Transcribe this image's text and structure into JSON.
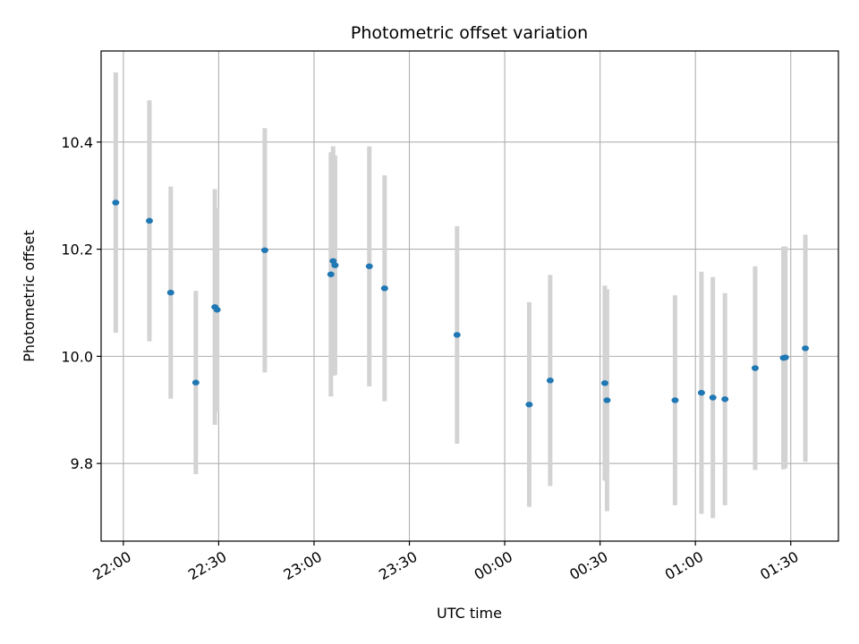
{
  "chart_data": {
    "type": "scatter",
    "title": "Photometric offset variation",
    "xlabel": "UTC time",
    "ylabel": "Photometric offset",
    "xlim": [
      "21:53",
      "01:45"
    ],
    "ylim": [
      9.655,
      10.57
    ],
    "grid": true,
    "error_bar_color": "#d3d3d3",
    "point_color": "#1f77b4",
    "x_ticks": [
      "22:00",
      "22:30",
      "23:00",
      "23:30",
      "00:00",
      "00:30",
      "01:00",
      "01:30"
    ],
    "y_ticks": [
      9.8,
      10.0,
      10.2,
      10.4
    ],
    "y_tick_labels": [
      "9.8",
      "10.0",
      "10.2",
      "10.4"
    ],
    "points": [
      {
        "x": "21:57.6",
        "y": 10.287,
        "err": 0.243
      },
      {
        "x": "22:08.2",
        "y": 10.253,
        "err": 0.225
      },
      {
        "x": "22:14.9",
        "y": 10.119,
        "err": 0.198
      },
      {
        "x": "22:22.8",
        "y": 9.951,
        "err": 0.171
      },
      {
        "x": "22:28.8",
        "y": 10.092,
        "err": 0.22
      },
      {
        "x": "22:29.5",
        "y": 10.087,
        "err": 0.19
      },
      {
        "x": "22:44.5",
        "y": 10.198,
        "err": 0.228
      },
      {
        "x": "23:05.3",
        "y": 10.153,
        "err": 0.228
      },
      {
        "x": "23:06.0",
        "y": 10.178,
        "err": 0.214
      },
      {
        "x": "23:06.6",
        "y": 10.17,
        "err": 0.205
      },
      {
        "x": "23:17.4",
        "y": 10.168,
        "err": 0.224
      },
      {
        "x": "23:22.2",
        "y": 10.127,
        "err": 0.211
      },
      {
        "x": "23:45.0",
        "y": 10.04,
        "err": 0.203
      },
      {
        "x": "00:07.7",
        "y": 9.91,
        "err": 0.191
      },
      {
        "x": "00:14.3",
        "y": 9.955,
        "err": 0.197
      },
      {
        "x": "00:31.5",
        "y": 9.95,
        "err": 0.182
      },
      {
        "x": "00:32.2",
        "y": 9.918,
        "err": 0.207
      },
      {
        "x": "00:53.6",
        "y": 9.918,
        "err": 0.196
      },
      {
        "x": "01:01.9",
        "y": 9.932,
        "err": 0.226
      },
      {
        "x": "01:05.5",
        "y": 9.923,
        "err": 0.225
      },
      {
        "x": "01:09.3",
        "y": 9.92,
        "err": 0.198
      },
      {
        "x": "01:18.8",
        "y": 9.978,
        "err": 0.19
      },
      {
        "x": "01:27.7",
        "y": 9.997,
        "err": 0.208
      },
      {
        "x": "01:28.3",
        "y": 9.998,
        "err": 0.207
      },
      {
        "x": "01:34.6",
        "y": 10.015,
        "err": 0.212
      }
    ]
  }
}
